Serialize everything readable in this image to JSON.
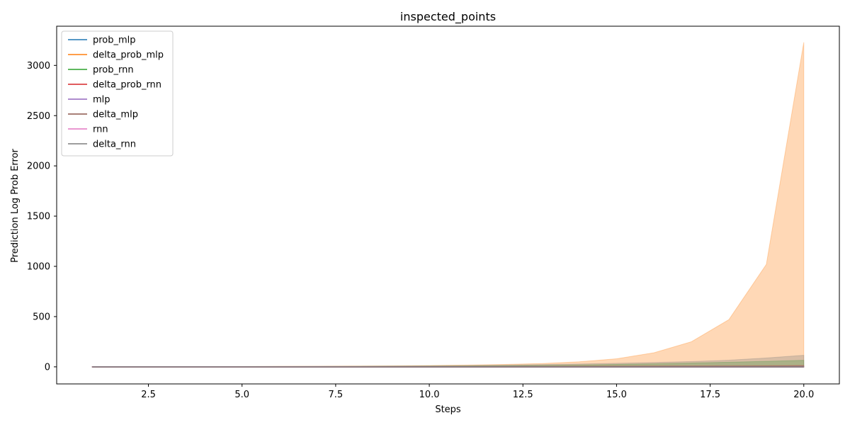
{
  "chart_data": {
    "type": "area",
    "title": "inspected_points",
    "xlabel": "Steps",
    "ylabel": "Prediction Log Prob Error",
    "xlim": [
      0.05,
      20.95
    ],
    "ylim": [
      -170,
      3390
    ],
    "xticks": [
      2.5,
      5.0,
      7.5,
      10.0,
      12.5,
      15.0,
      17.5,
      20.0
    ],
    "xtick_labels": [
      "2.5",
      "5.0",
      "7.5",
      "10.0",
      "12.5",
      "15.0",
      "17.5",
      "20.0"
    ],
    "yticks": [
      0,
      500,
      1000,
      1500,
      2000,
      2500,
      3000
    ],
    "ytick_labels": [
      "0",
      "500",
      "1000",
      "1500",
      "2000",
      "2500",
      "3000"
    ],
    "grid": false,
    "legend_position": "top-left",
    "x": [
      1,
      2,
      3,
      4,
      5,
      6,
      7,
      8,
      9,
      10,
      11,
      12,
      13,
      14,
      15,
      16,
      17,
      18,
      19,
      20
    ],
    "series": [
      {
        "name": "prob_mlp",
        "color": "#1f77b4",
        "values": [
          0,
          0,
          0,
          0,
          0,
          0,
          0,
          0,
          0,
          0,
          0,
          0,
          0,
          0,
          0,
          0,
          0,
          0,
          0,
          0
        ],
        "lower": [
          -2,
          -2,
          -2,
          -2,
          -2,
          -2,
          -2,
          -2,
          -2,
          -2,
          -2,
          -2,
          -2,
          -2,
          -2,
          -2,
          -2,
          -2,
          -2,
          -2
        ],
        "upper": [
          2,
          2,
          2,
          2,
          2,
          2,
          2,
          2,
          2,
          2,
          2,
          2,
          2,
          2,
          2,
          2,
          2,
          2,
          2,
          2
        ]
      },
      {
        "name": "delta_prob_mlp",
        "color": "#ff7f0e",
        "values": [
          0,
          0,
          0,
          0,
          0,
          0,
          0,
          0,
          0,
          0,
          0,
          0,
          0,
          0,
          0,
          0,
          0,
          0,
          0,
          0
        ],
        "lower": [
          -2,
          -2,
          -2,
          -2,
          -2,
          -2,
          -2,
          -2,
          -2,
          -2,
          -2,
          -2,
          -2,
          -2,
          -2,
          -2,
          -2,
          -2,
          -2,
          -2
        ],
        "upper": [
          2,
          2,
          2,
          3,
          4,
          5,
          6,
          8,
          10,
          13,
          18,
          24,
          33,
          50,
          80,
          140,
          250,
          470,
          1020,
          3230
        ]
      },
      {
        "name": "prob_rnn",
        "color": "#2ca02c",
        "values": [
          0,
          0,
          0,
          0,
          0,
          0,
          0,
          0,
          0,
          0,
          0,
          0,
          0,
          0,
          0,
          0,
          0,
          0,
          0,
          0
        ],
        "lower": [
          -2,
          -2,
          -2,
          -2,
          -2,
          -2,
          -2,
          -2,
          -2,
          -2,
          -2,
          -2,
          -2,
          -2,
          -2,
          -2,
          -2,
          -2,
          -2,
          -2
        ],
        "upper": [
          1,
          1,
          2,
          2,
          2,
          3,
          3,
          4,
          5,
          7,
          9,
          12,
          15,
          19,
          24,
          30,
          38,
          46,
          55,
          65
        ]
      },
      {
        "name": "delta_prob_rnn",
        "color": "#d62728",
        "values": [
          0,
          0,
          0,
          0,
          0,
          0,
          0,
          0,
          0,
          0,
          0,
          0,
          0,
          0,
          0,
          0,
          0,
          0,
          0,
          0
        ],
        "lower": [
          -2,
          -2,
          -2,
          -2,
          -2,
          -2,
          -2,
          -2,
          -2,
          -2,
          -2,
          -2,
          -2,
          -2,
          -2,
          -2,
          -2,
          -2,
          -2,
          -2
        ],
        "upper": [
          1,
          1,
          1,
          1,
          2,
          2,
          2,
          2,
          3,
          3,
          4,
          5,
          6,
          7,
          8,
          9,
          10,
          11,
          12,
          14
        ]
      },
      {
        "name": "mlp",
        "color": "#9467bd",
        "values": [
          0,
          0,
          0,
          0,
          0,
          0,
          0,
          0,
          0,
          0,
          0,
          0,
          0,
          0,
          0,
          0,
          0,
          0,
          0,
          0
        ],
        "lower": [
          -2,
          -2,
          -2,
          -2,
          -2,
          -2,
          -2,
          -2,
          -2,
          -2,
          -2,
          -2,
          -2,
          -2,
          -2,
          -2,
          -2,
          -2,
          -2,
          -2
        ],
        "upper": [
          2,
          2,
          2,
          2,
          2,
          2,
          2,
          2,
          2,
          2,
          2,
          2,
          2,
          2,
          2,
          2,
          2,
          2,
          2,
          2
        ]
      },
      {
        "name": "delta_mlp",
        "color": "#8c564b",
        "values": [
          0,
          0,
          0,
          0,
          0,
          0,
          0,
          0,
          0,
          0,
          0,
          0,
          0,
          0,
          0,
          0,
          0,
          0,
          0,
          0
        ],
        "lower": [
          -2,
          -2,
          -2,
          -2,
          -2,
          -2,
          -2,
          -2,
          -2,
          -2,
          -2,
          -2,
          -2,
          -2,
          -2,
          -2,
          -2,
          -2,
          -2,
          -2
        ],
        "upper": [
          1,
          1,
          1,
          1,
          1,
          2,
          2,
          2,
          2,
          3,
          3,
          3,
          4,
          4,
          5,
          5,
          6,
          6,
          7,
          8
        ]
      },
      {
        "name": "rnn",
        "color": "#e377c2",
        "values": [
          0,
          0,
          0,
          0,
          0,
          0,
          0,
          0,
          0,
          0,
          0,
          0,
          0,
          0,
          0,
          0,
          0,
          0,
          0,
          0
        ],
        "lower": [
          -2,
          -2,
          -2,
          -2,
          -2,
          -2,
          -2,
          -2,
          -2,
          -2,
          -2,
          -2,
          -2,
          -2,
          -2,
          -2,
          -2,
          -2,
          -2,
          -2
        ],
        "upper": [
          1,
          1,
          1,
          1,
          1,
          1,
          1,
          2,
          2,
          2,
          2,
          2,
          3,
          3,
          3,
          3,
          4,
          4,
          4,
          5
        ]
      },
      {
        "name": "delta_rnn",
        "color": "#7f7f7f",
        "values": [
          0,
          0,
          0,
          0,
          0,
          0,
          0,
          0,
          0,
          0,
          0,
          0,
          0,
          0,
          0,
          0,
          0,
          0,
          0,
          0
        ],
        "lower": [
          -2,
          -2,
          -2,
          -2,
          -2,
          -2,
          -2,
          -2,
          -2,
          -2,
          -2,
          -2,
          -2,
          -2,
          -2,
          -2,
          -2,
          -2,
          -2,
          -2
        ],
        "upper": [
          1,
          2,
          2,
          3,
          3,
          4,
          5,
          6,
          8,
          10,
          13,
          17,
          22,
          28,
          35,
          43,
          53,
          66,
          88,
          115
        ]
      }
    ]
  }
}
